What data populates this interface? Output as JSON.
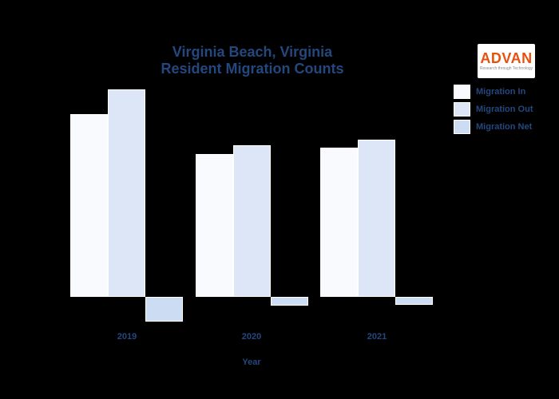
{
  "page": {
    "background": "#000000"
  },
  "logo": {
    "text": "ADVAN",
    "tagline": "Research through Technology",
    "accent_color": "#e8500f"
  },
  "chart_data": {
    "type": "bar",
    "title": "Virginia Beach, Virginia Resident Migration Counts",
    "title_line1": "Virginia Beach, Virginia",
    "title_line2": "Resident Migration Counts",
    "xlabel": "Year",
    "ylabel": "",
    "categories": [
      "2019",
      "2020",
      "2021"
    ],
    "series": [
      {
        "name": "Migration In",
        "color": "#f8fafd",
        "values": [
          22900,
          17900,
          18700
        ]
      },
      {
        "name": "Migration Out",
        "color": "#dce6f7",
        "values": [
          26000,
          19000,
          19700
        ]
      },
      {
        "name": "Migration Net",
        "color": "#cbdcf3",
        "values": [
          -3100,
          -1100,
          -1000
        ]
      }
    ],
    "ylim": [
      -5000,
      30000
    ],
    "grid": false,
    "legend_position": "upper right",
    "bar_edge_color": "#ffffff",
    "text_color": "#24477e",
    "background_color": "#000000"
  }
}
